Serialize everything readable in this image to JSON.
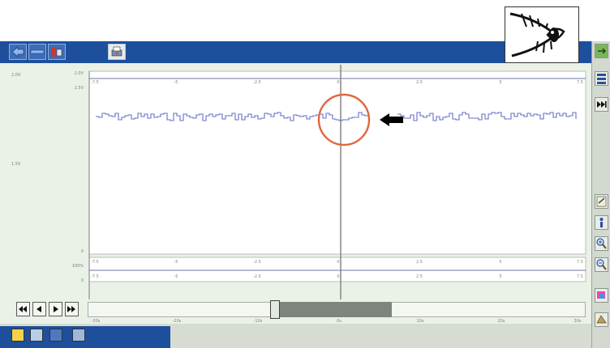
{
  "app": {
    "toolbar_top": [
      "back-icon",
      "forward-icon",
      "tools-icon",
      "printer-icon"
    ],
    "right_toolbar": [
      "menu-icon",
      "skip-end-icon",
      "edit-icon",
      "info-icon",
      "zoom-in-icon",
      "zoom-out-icon",
      "paint-icon",
      "misc-icon"
    ]
  },
  "graph": {
    "cursor_label": "0",
    "top_axis_ticks": [
      "-7.5",
      "-5",
      "-2.5",
      "0",
      "2.5",
      "5",
      "7.5"
    ],
    "bottom_axis_ticks": [
      "-7.5",
      "-5",
      "-2.5",
      "0",
      "2.5",
      "5",
      "7.5"
    ],
    "scroll_axis_ticks": [
      "-30s",
      "-20s",
      "-10s",
      "0s",
      "10s",
      "20s",
      "30s"
    ],
    "left_labels": [
      "2.0V",
      "1.5V",
      "0",
      "100%",
      "0"
    ]
  },
  "navigation": {
    "buttons": [
      "first",
      "previous",
      "next",
      "last"
    ]
  },
  "colors": {
    "titlebar": "#1d4f9c",
    "panel": "#eaf1e6",
    "signal": "#6670c8",
    "highlight_circle": "#e0673e"
  }
}
